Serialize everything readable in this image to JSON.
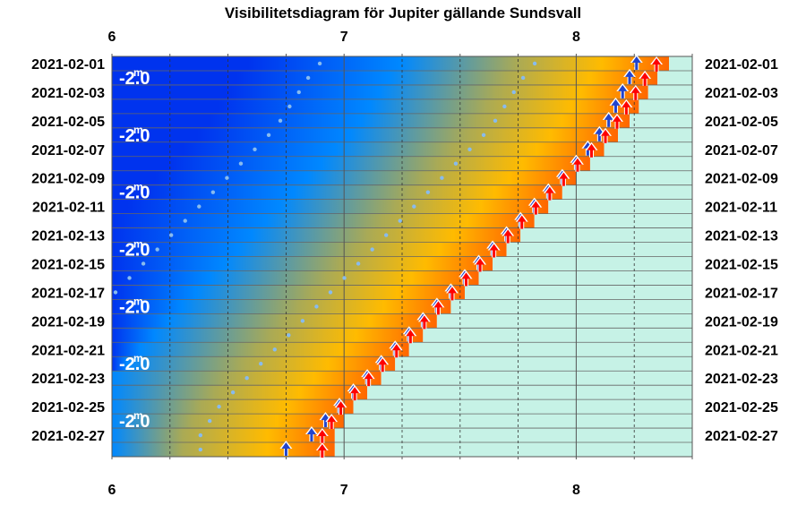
{
  "chart_data": {
    "type": "visibility-diagram",
    "title": "Visibilitetsdiagram för Jupiter gällande Sundsvall",
    "x_range": [
      6,
      8.5
    ],
    "x_ticks": [
      "6",
      "7",
      "8"
    ],
    "x_tick_values": [
      6,
      7,
      8
    ],
    "rows": [
      {
        "date": "2021-02-01",
        "sunrise": 8.4,
        "planet_rise": 8.26
      },
      {
        "date": "2021-02-02",
        "sunrise": 8.35,
        "planet_rise": 8.23
      },
      {
        "date": "2021-02-03",
        "sunrise": 8.31,
        "planet_rise": 8.2
      },
      {
        "date": "2021-02-04",
        "sunrise": 8.27,
        "planet_rise": 8.17
      },
      {
        "date": "2021-02-05",
        "sunrise": 8.23,
        "planet_rise": 8.14
      },
      {
        "date": "2021-02-06",
        "sunrise": 8.18,
        "planet_rise": 8.1
      },
      {
        "date": "2021-02-07",
        "sunrise": 8.12,
        "planet_rise": 8.05
      },
      {
        "date": "2021-02-08",
        "sunrise": 8.06,
        "planet_rise": 8.0
      },
      {
        "date": "2021-02-09",
        "sunrise": 8.0,
        "planet_rise": 7.94
      },
      {
        "date": "2021-02-10",
        "sunrise": 7.94,
        "planet_rise": 7.88
      },
      {
        "date": "2021-02-11",
        "sunrise": 7.88,
        "planet_rise": 7.82
      },
      {
        "date": "2021-02-12",
        "sunrise": 7.82,
        "planet_rise": 7.76
      },
      {
        "date": "2021-02-13",
        "sunrise": 7.76,
        "planet_rise": 7.7
      },
      {
        "date": "2021-02-14",
        "sunrise": 7.7,
        "planet_rise": 7.64
      },
      {
        "date": "2021-02-15",
        "sunrise": 7.64,
        "planet_rise": 7.58
      },
      {
        "date": "2021-02-16",
        "sunrise": 7.58,
        "planet_rise": 7.52
      },
      {
        "date": "2021-02-17",
        "sunrise": 7.52,
        "planet_rise": 7.46
      },
      {
        "date": "2021-02-18",
        "sunrise": 7.46,
        "planet_rise": 7.4
      },
      {
        "date": "2021-02-19",
        "sunrise": 7.4,
        "planet_rise": 7.34
      },
      {
        "date": "2021-02-20",
        "sunrise": 7.34,
        "planet_rise": 7.28
      },
      {
        "date": "2021-02-21",
        "sunrise": 7.28,
        "planet_rise": 7.22
      },
      {
        "date": "2021-02-22",
        "sunrise": 7.22,
        "planet_rise": 7.16
      },
      {
        "date": "2021-02-23",
        "sunrise": 7.16,
        "planet_rise": 7.1
      },
      {
        "date": "2021-02-24",
        "sunrise": 7.1,
        "planet_rise": 7.04
      },
      {
        "date": "2021-02-25",
        "sunrise": 7.04,
        "planet_rise": 6.98
      },
      {
        "date": "2021-02-26",
        "sunrise": 7.0,
        "planet_rise": 6.92
      },
      {
        "date": "2021-02-27",
        "sunrise": 6.96,
        "planet_rise": 6.86
      },
      {
        "date": "2021-02-28",
        "sunrise": 6.96,
        "planet_rise": 6.75
      }
    ],
    "date_labels": [
      "2021-02-01",
      "2021-02-03",
      "2021-02-05",
      "2021-02-07",
      "2021-02-09",
      "2021-02-11",
      "2021-02-13",
      "2021-02-15",
      "2021-02-17",
      "2021-02-19",
      "2021-02-21",
      "2021-02-23",
      "2021-02-25",
      "2021-02-27"
    ],
    "magnitude_labels": [
      {
        "value": "-2.0",
        "unit": "m",
        "date": "2021-02-02"
      },
      {
        "value": "-2.0",
        "unit": "m",
        "date": "2021-02-06"
      },
      {
        "value": "-2.0",
        "unit": "m",
        "date": "2021-02-10"
      },
      {
        "value": "-2.0",
        "unit": "m",
        "date": "2021-02-14"
      },
      {
        "value": "-2.0",
        "unit": "m",
        "date": "2021-02-18"
      },
      {
        "value": "-2.0",
        "unit": "m",
        "date": "2021-02-22"
      },
      {
        "value": "-2.0",
        "unit": "m",
        "date": "2021-02-26"
      }
    ],
    "colors": {
      "night": "#0033ee",
      "twilight_blue": "#0088ff",
      "twilight_olive": "#aaaa55",
      "twilight_gold": "#ffbb00",
      "dawn_orange": "#ff6600",
      "daylight": "#c6f2e6",
      "planet_arrow": "#2244cc",
      "sun_arrow": "#ff0000",
      "dots": "#88bbee"
    }
  }
}
